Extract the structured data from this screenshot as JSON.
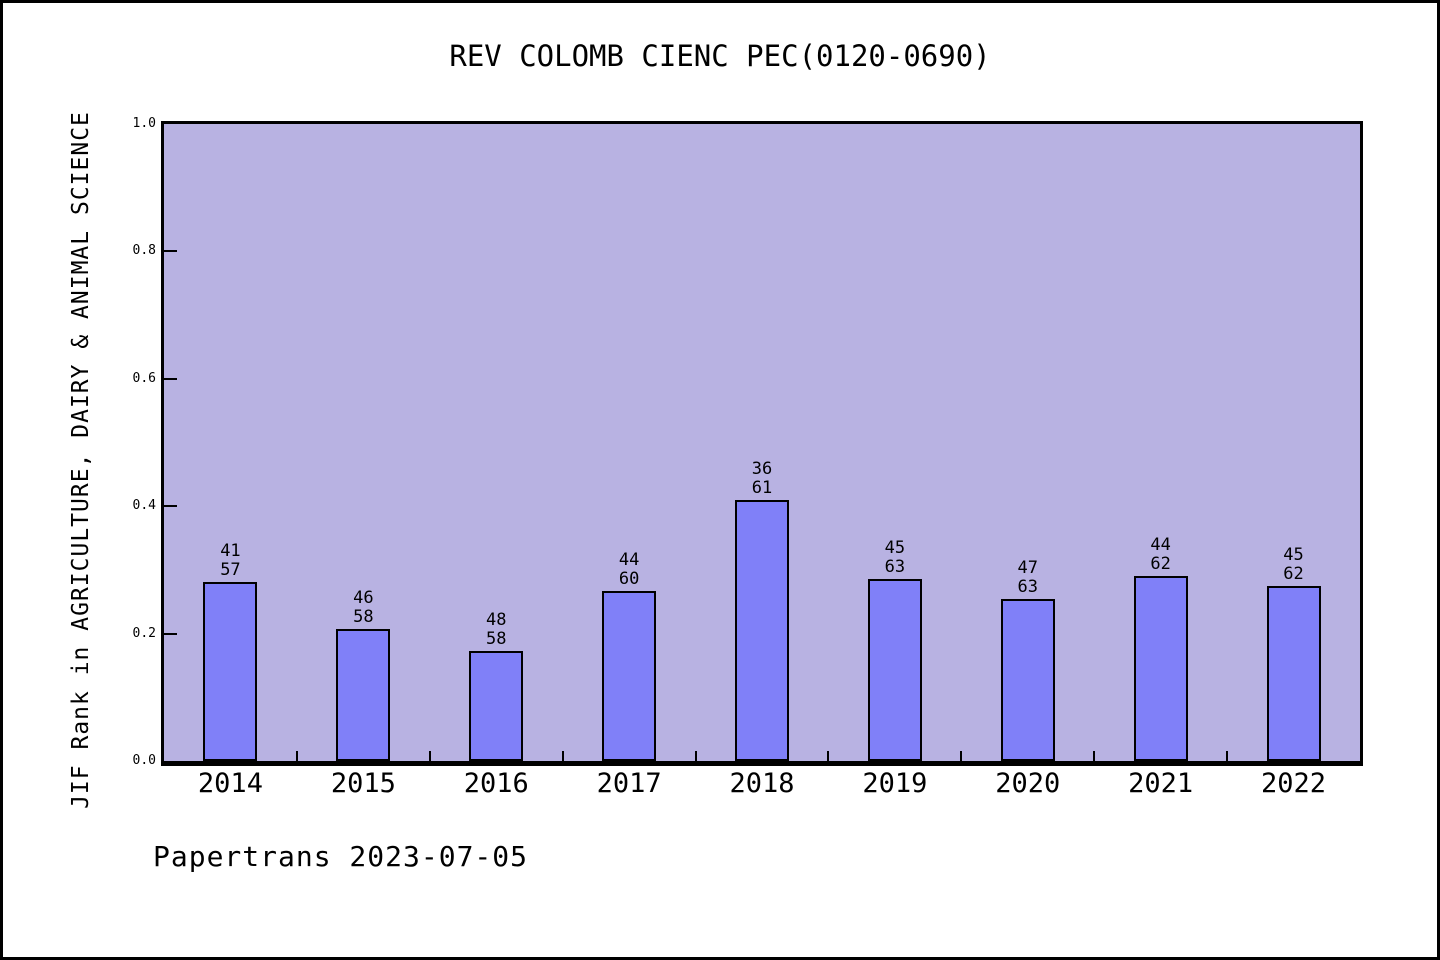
{
  "title": "REV COLOMB CIENC PEC(0120-0690)",
  "footer": "Papertrans 2023-07-05",
  "colors": {
    "bar_fill": "#8080f8",
    "bar_border": "#000000",
    "plot_background": "#b8b2e2",
    "frame": "#000000",
    "page_background": "#ffffff",
    "text": "#000000"
  },
  "chart_data": {
    "type": "bar",
    "title": "REV COLOMB CIENC PEC(0120-0690)",
    "xlabel": "",
    "ylabel": "JIF Rank in AGRICULTURE, DAIRY & ANIMAL SCIENCE",
    "categories": [
      "2014",
      "2015",
      "2016",
      "2017",
      "2018",
      "2019",
      "2020",
      "2021",
      "2022"
    ],
    "values": [
      0.2807,
      0.2069,
      0.1724,
      0.2667,
      0.4098,
      0.2857,
      0.254,
      0.2903,
      0.2742
    ],
    "bar_labels": [
      {
        "rank": "41",
        "total": "57"
      },
      {
        "rank": "46",
        "total": "58"
      },
      {
        "rank": "48",
        "total": "58"
      },
      {
        "rank": "44",
        "total": "60"
      },
      {
        "rank": "36",
        "total": "61"
      },
      {
        "rank": "45",
        "total": "63"
      },
      {
        "rank": "47",
        "total": "63"
      },
      {
        "rank": "44",
        "total": "62"
      },
      {
        "rank": "45",
        "total": "62"
      }
    ],
    "ylim": [
      0,
      1
    ],
    "yticks": [
      "0.0",
      "0.2",
      "0.4",
      "0.6",
      "0.8",
      "1.0"
    ],
    "grid": false,
    "legend": false
  }
}
